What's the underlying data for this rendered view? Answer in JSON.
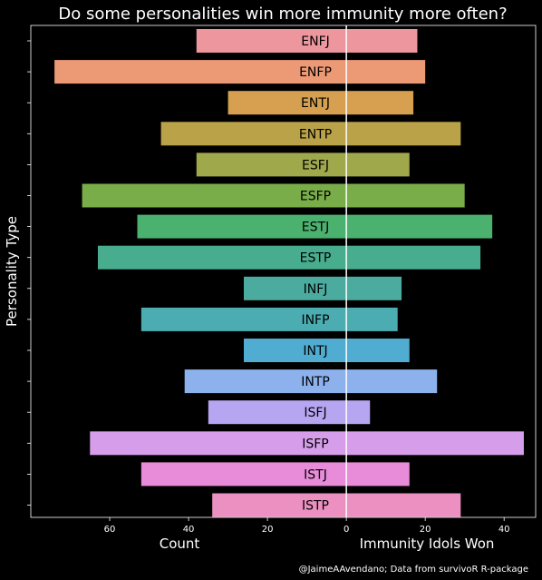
{
  "chart_data": {
    "type": "bar",
    "orientation": "horizontal-diverging",
    "title": "Do some personalities win more immunity more often?",
    "ylabel": "Personality Type",
    "xlabel_left": "Count",
    "xlabel_right": "Immunity Idols Won",
    "caption": "@JaimeAAvendano; Data from survivoR R-package",
    "xlim": [
      -80,
      48
    ],
    "x_ticks": [
      -60,
      -40,
      -20,
      0,
      20,
      40
    ],
    "x_tick_labels": [
      "60",
      "40",
      "20",
      "0",
      "20",
      "40"
    ],
    "categories": [
      "ENFJ",
      "ENFP",
      "ENTJ",
      "ENTP",
      "ESFJ",
      "ESFP",
      "ESTJ",
      "ESTP",
      "INFJ",
      "INFP",
      "INTJ",
      "INTP",
      "ISFJ",
      "ISFP",
      "ISTJ",
      "ISTP"
    ],
    "series": [
      {
        "name": "Count",
        "values": [
          38,
          74,
          30,
          47,
          38,
          67,
          53,
          63,
          26,
          52,
          26,
          41,
          35,
          65,
          52,
          34
        ]
      },
      {
        "name": "Immunity Idols Won",
        "values": [
          18,
          20,
          17,
          29,
          16,
          30,
          37,
          34,
          14,
          13,
          16,
          23,
          6,
          45,
          16,
          29
        ]
      }
    ],
    "colors": [
      "#ed969e",
      "#ec9a76",
      "#d6a050",
      "#b9a247",
      "#9fa84b",
      "#79ad49",
      "#4bb16f",
      "#48ad8e",
      "#4aab9e",
      "#4bacb1",
      "#50acd0",
      "#8cb1ec",
      "#b6a6f1",
      "#d69eea",
      "#e88bd9",
      "#eb90c0"
    ],
    "grid": false
  }
}
